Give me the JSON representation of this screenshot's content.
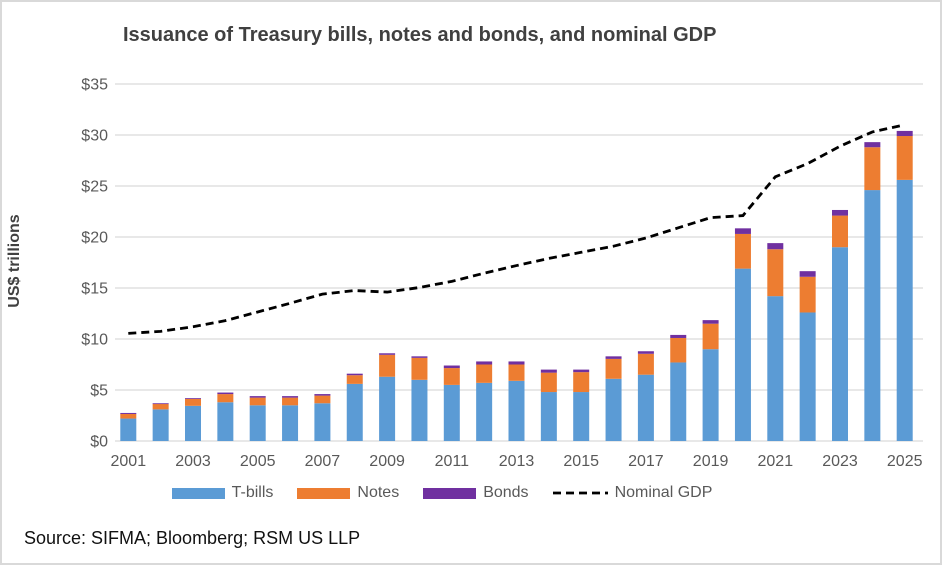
{
  "frame": {
    "source": "Source: SIFMA; Bloomberg; RSM US LLP"
  },
  "chart_data": {
    "type": "bar",
    "subtype": "stacked-bars-with-line",
    "title": "Issuance of Treasury bills, notes and bonds, and nominal GDP",
    "xlabel": "",
    "ylabel": "US$ trillions",
    "ylim": [
      0,
      35
    ],
    "ytick_labels": [
      "$0",
      "$5",
      "$10",
      "$15",
      "$20",
      "$25",
      "$30",
      "$35"
    ],
    "ytick_values": [
      0,
      5,
      10,
      15,
      20,
      25,
      30,
      35
    ],
    "grid": true,
    "legend_position": "bottom",
    "categories": [
      "2001",
      "2002",
      "2003",
      "2004",
      "2005",
      "2006",
      "2007",
      "2008",
      "2009",
      "2010",
      "2011",
      "2012",
      "2013",
      "2014",
      "2015",
      "2016",
      "2017",
      "2018",
      "2019",
      "2020",
      "2021",
      "2022",
      "2023",
      "2024",
      "2025"
    ],
    "xtick_labels": [
      "2001",
      "2003",
      "2005",
      "2007",
      "2009",
      "2011",
      "2013",
      "2015",
      "2017",
      "2019",
      "2021",
      "2023",
      "2025"
    ],
    "series": [
      {
        "name": "T-bills",
        "type": "bar",
        "color": "#5B9BD5",
        "values": [
          2.2,
          3.1,
          3.45,
          3.8,
          3.5,
          3.5,
          3.7,
          5.6,
          6.3,
          6.0,
          5.5,
          5.7,
          5.9,
          4.8,
          4.8,
          6.1,
          6.5,
          7.7,
          9.0,
          16.9,
          14.2,
          12.6,
          19.0,
          24.6,
          25.6
        ]
      },
      {
        "name": "Notes",
        "type": "bar",
        "color": "#ED7D31",
        "values": [
          0.45,
          0.55,
          0.7,
          0.8,
          0.75,
          0.75,
          0.75,
          0.85,
          2.15,
          2.15,
          1.65,
          1.8,
          1.6,
          1.9,
          1.95,
          1.95,
          2.05,
          2.4,
          2.5,
          3.4,
          4.6,
          3.5,
          3.1,
          4.2,
          4.3
        ]
      },
      {
        "name": "Bonds",
        "type": "bar",
        "color": "#7030A0",
        "values": [
          0.1,
          0.05,
          0.05,
          0.15,
          0.15,
          0.15,
          0.15,
          0.15,
          0.15,
          0.15,
          0.25,
          0.3,
          0.3,
          0.3,
          0.25,
          0.25,
          0.25,
          0.3,
          0.35,
          0.55,
          0.6,
          0.55,
          0.55,
          0.5,
          0.5
        ]
      },
      {
        "name": "Nominal GDP",
        "type": "line",
        "color": "#000000",
        "dashed": true,
        "values": [
          10.55,
          10.75,
          11.2,
          11.8,
          12.65,
          13.5,
          14.4,
          14.75,
          14.6,
          15.05,
          15.65,
          16.45,
          17.2,
          17.9,
          18.5,
          19.1,
          19.9,
          20.9,
          21.9,
          22.1,
          25.9,
          27.2,
          28.9,
          30.3,
          31.0
        ]
      }
    ],
    "colors": {
      "gridline": "#D9D9D9",
      "tick_text": "#595959",
      "title_text": "#404040"
    }
  }
}
